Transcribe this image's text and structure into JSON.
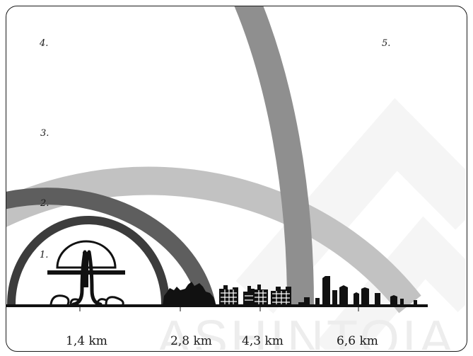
{
  "zones": [
    {
      "label": "1.",
      "color": "#000000"
    },
    {
      "label": "2.",
      "color": "#3c3c3c"
    },
    {
      "label": "3.",
      "color": "#595959"
    },
    {
      "label": "4.",
      "color": "#8f8f8f"
    },
    {
      "label": "5.",
      "color": "#bdbdbd"
    }
  ],
  "distances": [
    "1,4 km",
    "2,8 km",
    "4,3 km",
    "6,6 km"
  ],
  "watermark": "ASHINTOIA"
}
